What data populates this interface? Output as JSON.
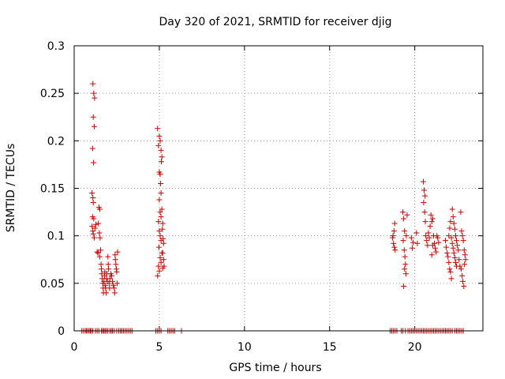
{
  "chart_data": {
    "type": "scatter",
    "title": "Day 320 of 2021, SRMTID for receiver djig",
    "xlabel": "GPS time / hours",
    "ylabel": "SRMTID / TECUs",
    "xlim": [
      0,
      24
    ],
    "ylim": [
      0,
      0.3
    ],
    "x_ticks": [
      "0",
      "5",
      "10",
      "15",
      "20"
    ],
    "y_ticks": [
      "0",
      "0.05",
      "0.1",
      "0.15",
      "0.2",
      "0.25",
      "0.3"
    ],
    "grid": true,
    "marker": "+",
    "color": "#cc0000",
    "points": [
      [
        1.1,
        0.26
      ],
      [
        1.15,
        0.25
      ],
      [
        1.2,
        0.245
      ],
      [
        1.12,
        0.225
      ],
      [
        1.18,
        0.215
      ],
      [
        1.08,
        0.192
      ],
      [
        1.14,
        0.177
      ],
      [
        1.05,
        0.145
      ],
      [
        1.1,
        0.14
      ],
      [
        1.12,
        0.135
      ],
      [
        1.08,
        0.12
      ],
      [
        1.15,
        0.118
      ],
      [
        1.05,
        0.11
      ],
      [
        1.1,
        0.105
      ],
      [
        1.12,
        0.102
      ],
      [
        1.18,
        0.098
      ],
      [
        1.22,
        0.108
      ],
      [
        1.28,
        0.112
      ],
      [
        1.35,
        0.083
      ],
      [
        1.4,
        0.082
      ],
      [
        1.45,
        0.13
      ],
      [
        1.5,
        0.128
      ],
      [
        1.42,
        0.113
      ],
      [
        1.48,
        0.103
      ],
      [
        1.52,
        0.098
      ],
      [
        1.55,
        0.085
      ],
      [
        1.5,
        0.078
      ],
      [
        1.58,
        0.07
      ],
      [
        1.6,
        0.065
      ],
      [
        1.62,
        0.06
      ],
      [
        1.65,
        0.055
      ],
      [
        1.68,
        0.05
      ],
      [
        1.7,
        0.045
      ],
      [
        1.72,
        0.04
      ],
      [
        1.75,
        0.052
      ],
      [
        1.78,
        0.058
      ],
      [
        1.8,
        0.062
      ],
      [
        1.82,
        0.048
      ],
      [
        1.85,
        0.045
      ],
      [
        1.88,
        0.04
      ],
      [
        1.9,
        0.055
      ],
      [
        1.92,
        0.06
      ],
      [
        1.95,
        0.052
      ],
      [
        1.98,
        0.078
      ],
      [
        2.0,
        0.07
      ],
      [
        2.02,
        0.065
      ],
      [
        2.05,
        0.05
      ],
      [
        2.08,
        0.045
      ],
      [
        2.1,
        0.055
      ],
      [
        2.15,
        0.06
      ],
      [
        2.2,
        0.058
      ],
      [
        2.25,
        0.052
      ],
      [
        2.3,
        0.048
      ],
      [
        2.35,
        0.045
      ],
      [
        2.38,
        0.04
      ],
      [
        2.4,
        0.08
      ],
      [
        2.42,
        0.075
      ],
      [
        2.45,
        0.07
      ],
      [
        2.48,
        0.065
      ],
      [
        2.5,
        0.062
      ],
      [
        2.52,
        0.05
      ],
      [
        2.55,
        0.083
      ],
      [
        4.9,
        0.213
      ],
      [
        5.0,
        0.205
      ],
      [
        5.05,
        0.2
      ],
      [
        4.95,
        0.195
      ],
      [
        5.1,
        0.19
      ],
      [
        5.15,
        0.183
      ],
      [
        5.12,
        0.178
      ],
      [
        5.0,
        0.167
      ],
      [
        5.05,
        0.165
      ],
      [
        5.08,
        0.155
      ],
      [
        5.1,
        0.145
      ],
      [
        5.0,
        0.138
      ],
      [
        5.15,
        0.128
      ],
      [
        5.05,
        0.125
      ],
      [
        5.1,
        0.12
      ],
      [
        4.95,
        0.115
      ],
      [
        5.2,
        0.113
      ],
      [
        5.0,
        0.105
      ],
      [
        5.05,
        0.1
      ],
      [
        5.1,
        0.095
      ],
      [
        4.98,
        0.088
      ],
      [
        5.15,
        0.082
      ],
      [
        5.05,
        0.077
      ],
      [
        5.1,
        0.072
      ],
      [
        4.95,
        0.068
      ],
      [
        5.2,
        0.066
      ],
      [
        5.0,
        0.063
      ],
      [
        4.9,
        0.058
      ],
      [
        5.18,
        0.107
      ],
      [
        5.22,
        0.097
      ],
      [
        5.25,
        0.092
      ],
      [
        5.2,
        0.082
      ],
      [
        5.25,
        0.075
      ],
      [
        5.28,
        0.068
      ],
      [
        18.7,
        0.098
      ],
      [
        18.75,
        0.092
      ],
      [
        18.8,
        0.088
      ],
      [
        18.72,
        0.1
      ],
      [
        18.78,
        0.105
      ],
      [
        18.82,
        0.113
      ],
      [
        18.85,
        0.085
      ],
      [
        19.3,
        0.125
      ],
      [
        19.35,
        0.118
      ],
      [
        19.4,
        0.105
      ],
      [
        19.32,
        0.095
      ],
      [
        19.38,
        0.085
      ],
      [
        19.42,
        0.078
      ],
      [
        19.45,
        0.07
      ],
      [
        19.4,
        0.065
      ],
      [
        19.48,
        0.06
      ],
      [
        19.35,
        0.047
      ],
      [
        19.5,
        0.1
      ],
      [
        19.55,
        0.122
      ],
      [
        19.8,
        0.098
      ],
      [
        19.85,
        0.087
      ],
      [
        19.9,
        0.093
      ],
      [
        20.1,
        0.103
      ],
      [
        20.15,
        0.092
      ],
      [
        20.5,
        0.157
      ],
      [
        20.55,
        0.148
      ],
      [
        20.6,
        0.142
      ],
      [
        20.52,
        0.135
      ],
      [
        20.58,
        0.125
      ],
      [
        20.62,
        0.115
      ],
      [
        20.65,
        0.1
      ],
      [
        20.7,
        0.095
      ],
      [
        20.75,
        0.09
      ],
      [
        20.8,
        0.103
      ],
      [
        20.85,
        0.098
      ],
      [
        20.9,
        0.11
      ],
      [
        20.95,
        0.122
      ],
      [
        21.0,
        0.115
      ],
      [
        21.05,
        0.118
      ],
      [
        21.1,
        0.1
      ],
      [
        21.15,
        0.092
      ],
      [
        21.2,
        0.087
      ],
      [
        21.25,
        0.083
      ],
      [
        21.3,
        0.1
      ],
      [
        21.35,
        0.098
      ],
      [
        21.4,
        0.093
      ],
      [
        21.0,
        0.08
      ],
      [
        21.05,
        0.09
      ],
      [
        21.8,
        0.095
      ],
      [
        21.85,
        0.088
      ],
      [
        21.9,
        0.082
      ],
      [
        21.95,
        0.078
      ],
      [
        22.0,
        0.072
      ],
      [
        22.05,
        0.065
      ],
      [
        22.1,
        0.062
      ],
      [
        22.15,
        0.055
      ],
      [
        22.2,
        0.128
      ],
      [
        22.25,
        0.12
      ],
      [
        22.3,
        0.113
      ],
      [
        22.35,
        0.107
      ],
      [
        22.4,
        0.1
      ],
      [
        22.45,
        0.095
      ],
      [
        22.5,
        0.09
      ],
      [
        22.55,
        0.085
      ],
      [
        22.6,
        0.075
      ],
      [
        22.65,
        0.068
      ],
      [
        22.7,
        0.125
      ],
      [
        22.75,
        0.105
      ],
      [
        22.8,
        0.1
      ],
      [
        22.85,
        0.095
      ],
      [
        22.9,
        0.085
      ],
      [
        22.95,
        0.08
      ],
      [
        22.72,
        0.065
      ],
      [
        22.78,
        0.058
      ],
      [
        22.82,
        0.052
      ],
      [
        22.88,
        0.047
      ],
      [
        22.92,
        0.07
      ],
      [
        22.98,
        0.075
      ],
      [
        22.0,
        0.1
      ],
      [
        22.05,
        0.108
      ],
      [
        22.1,
        0.115
      ],
      [
        22.15,
        0.098
      ],
      [
        22.2,
        0.092
      ],
      [
        22.25,
        0.087
      ],
      [
        22.3,
        0.082
      ],
      [
        22.35,
        0.077
      ],
      [
        22.4,
        0.072
      ],
      [
        22.45,
        0.068
      ]
    ],
    "zero_points_x": [
      0.45,
      0.55,
      0.65,
      0.72,
      0.8,
      0.88,
      0.95,
      1.02,
      1.1,
      1.25,
      1.35,
      1.45,
      1.6,
      1.68,
      1.75,
      1.82,
      1.9,
      1.98,
      2.1,
      2.18,
      2.25,
      2.35,
      2.5,
      2.62,
      2.72,
      2.8,
      2.9,
      3.0,
      3.1,
      3.2,
      3.3,
      3.4,
      4.8,
      4.9,
      5.0,
      5.1,
      5.5,
      5.6,
      5.7,
      5.8,
      5.9,
      6.3,
      18.55,
      18.65,
      18.75,
      18.85,
      18.95,
      19.2,
      19.3,
      19.45,
      19.6,
      19.7,
      19.8,
      19.9,
      20.0,
      20.1,
      20.2,
      20.3,
      20.4,
      20.5,
      20.6,
      20.7,
      20.8,
      20.9,
      21.0,
      21.1,
      21.2,
      21.3,
      21.4,
      21.5,
      21.6,
      21.7,
      21.8,
      21.9,
      22.0,
      22.1,
      22.2,
      22.35,
      22.45,
      22.55,
      22.65,
      22.75,
      22.85
    ]
  }
}
